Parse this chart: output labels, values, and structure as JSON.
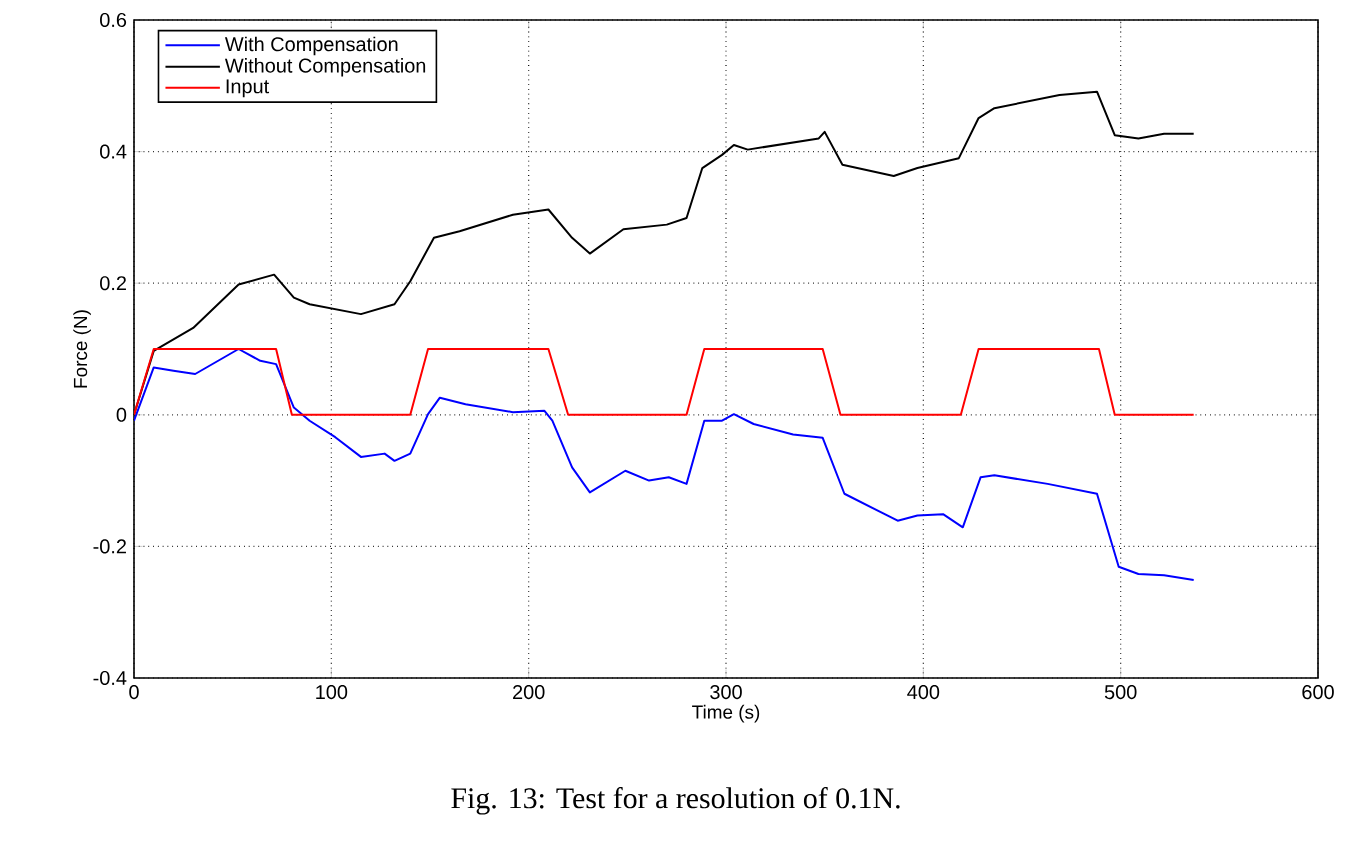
{
  "chart_data": {
    "type": "line",
    "xlabel": "Time (s)",
    "ylabel": "Force (N)",
    "xlim": [
      0,
      600
    ],
    "ylim": [
      -0.4,
      0.6
    ],
    "xticks": [
      0,
      100,
      200,
      300,
      400,
      500,
      600
    ],
    "yticks": [
      -0.4,
      -0.2,
      0,
      0.2,
      0.4,
      0.6
    ],
    "grid": true,
    "legend": "top left",
    "annotations": [
      "Fig. 13: Test for a resolution of 0.1N."
    ],
    "series": [
      {
        "name": "With Compensation",
        "color": "#0000ff",
        "x": [
          0,
          10,
          20,
          31,
          53,
          64,
          72,
          81,
          89,
          102,
          115,
          127,
          132,
          140,
          149,
          155,
          168,
          192,
          208,
          212,
          222,
          231,
          249,
          261,
          271,
          280,
          289,
          298,
          304,
          314,
          334,
          349,
          360,
          387,
          397,
          410,
          420,
          429,
          436,
          463,
          488,
          499,
          509,
          522,
          537
        ],
        "values": [
          -0.009,
          0.072,
          0.067,
          0.062,
          0.1,
          0.082,
          0.077,
          0.011,
          -0.009,
          -0.034,
          -0.064,
          -0.059,
          -0.07,
          -0.059,
          0.001,
          0.026,
          0.016,
          0.004,
          0.006,
          -0.009,
          -0.08,
          -0.118,
          -0.085,
          -0.1,
          -0.095,
          -0.105,
          -0.009,
          -0.009,
          0.001,
          -0.014,
          -0.03,
          -0.035,
          -0.12,
          -0.161,
          -0.153,
          -0.151,
          -0.171,
          -0.095,
          -0.092,
          -0.105,
          -0.12,
          -0.231,
          -0.242,
          -0.244,
          -0.251
        ]
      },
      {
        "name": "Without Compensation",
        "color": "#000000",
        "x": [
          0,
          10,
          30,
          53,
          71,
          81,
          89,
          115,
          132,
          140,
          152,
          165,
          192,
          210,
          222,
          231,
          248,
          270,
          280,
          288,
          298,
          304,
          311,
          347,
          350,
          359,
          385,
          397,
          418,
          428,
          436,
          469,
          488,
          497,
          509,
          522,
          537
        ],
        "values": [
          0.0,
          0.097,
          0.132,
          0.198,
          0.213,
          0.178,
          0.168,
          0.153,
          0.168,
          0.203,
          0.269,
          0.279,
          0.304,
          0.312,
          0.269,
          0.245,
          0.282,
          0.289,
          0.299,
          0.375,
          0.395,
          0.41,
          0.403,
          0.42,
          0.43,
          0.38,
          0.363,
          0.375,
          0.39,
          0.451,
          0.466,
          0.486,
          0.491,
          0.425,
          0.42,
          0.427,
          0.427
        ]
      },
      {
        "name": "Input",
        "color": "#ff0000",
        "x": [
          0,
          10,
          72,
          80,
          140,
          149,
          210,
          220,
          280,
          289,
          349,
          358,
          419,
          428,
          489,
          497,
          537
        ],
        "values": [
          0,
          0.1,
          0.1,
          0,
          0,
          0.1,
          0.1,
          0,
          0,
          0.1,
          0.1,
          0,
          0,
          0.1,
          0.1,
          0,
          0
        ]
      }
    ]
  }
}
